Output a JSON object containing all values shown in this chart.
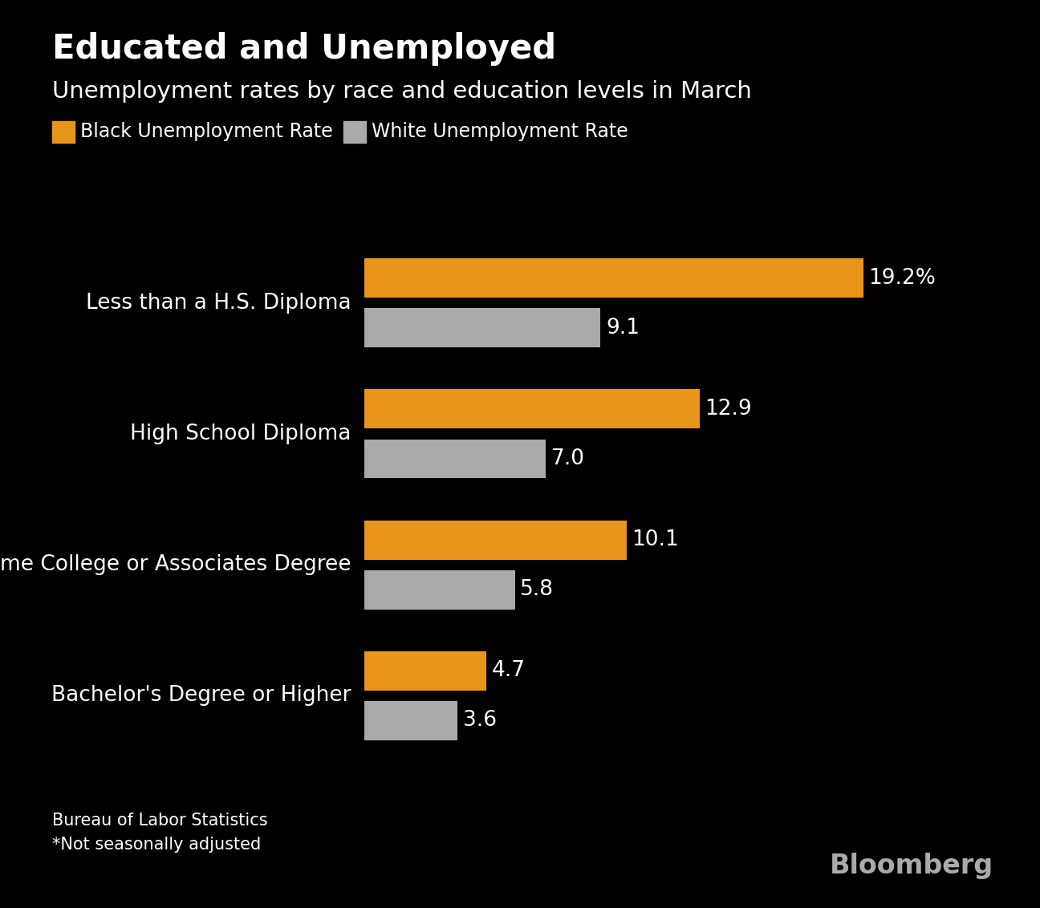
{
  "title": "Educated and Unemployed",
  "subtitle": "Unemployment rates by race and education levels in March",
  "categories": [
    "Less than a H.S. Diploma",
    "High School Diploma",
    "Some College or Associates Degree",
    "Bachelor's Degree or Higher"
  ],
  "black_values": [
    19.2,
    12.9,
    10.1,
    4.7
  ],
  "white_values": [
    9.1,
    7.0,
    5.8,
    3.6
  ],
  "black_color": "#E8951A",
  "white_color": "#AAAAAA",
  "background_color": "#000000",
  "text_color": "#FFFFFF",
  "title_fontsize": 30,
  "subtitle_fontsize": 21,
  "label_fontsize": 19,
  "value_fontsize": 19,
  "legend_fontsize": 17,
  "source_fontsize": 15,
  "bloomberg_fontsize": 24,
  "source_text": "Bureau of Labor Statistics\n*Not seasonally adjusted",
  "bloomberg_text": "Bloomberg",
  "legend_labels": [
    "Black Unemployment Rate",
    "White Unemployment Rate"
  ],
  "xlim": [
    0,
    22
  ],
  "bar_height": 0.3,
  "bar_gap": 0.08
}
